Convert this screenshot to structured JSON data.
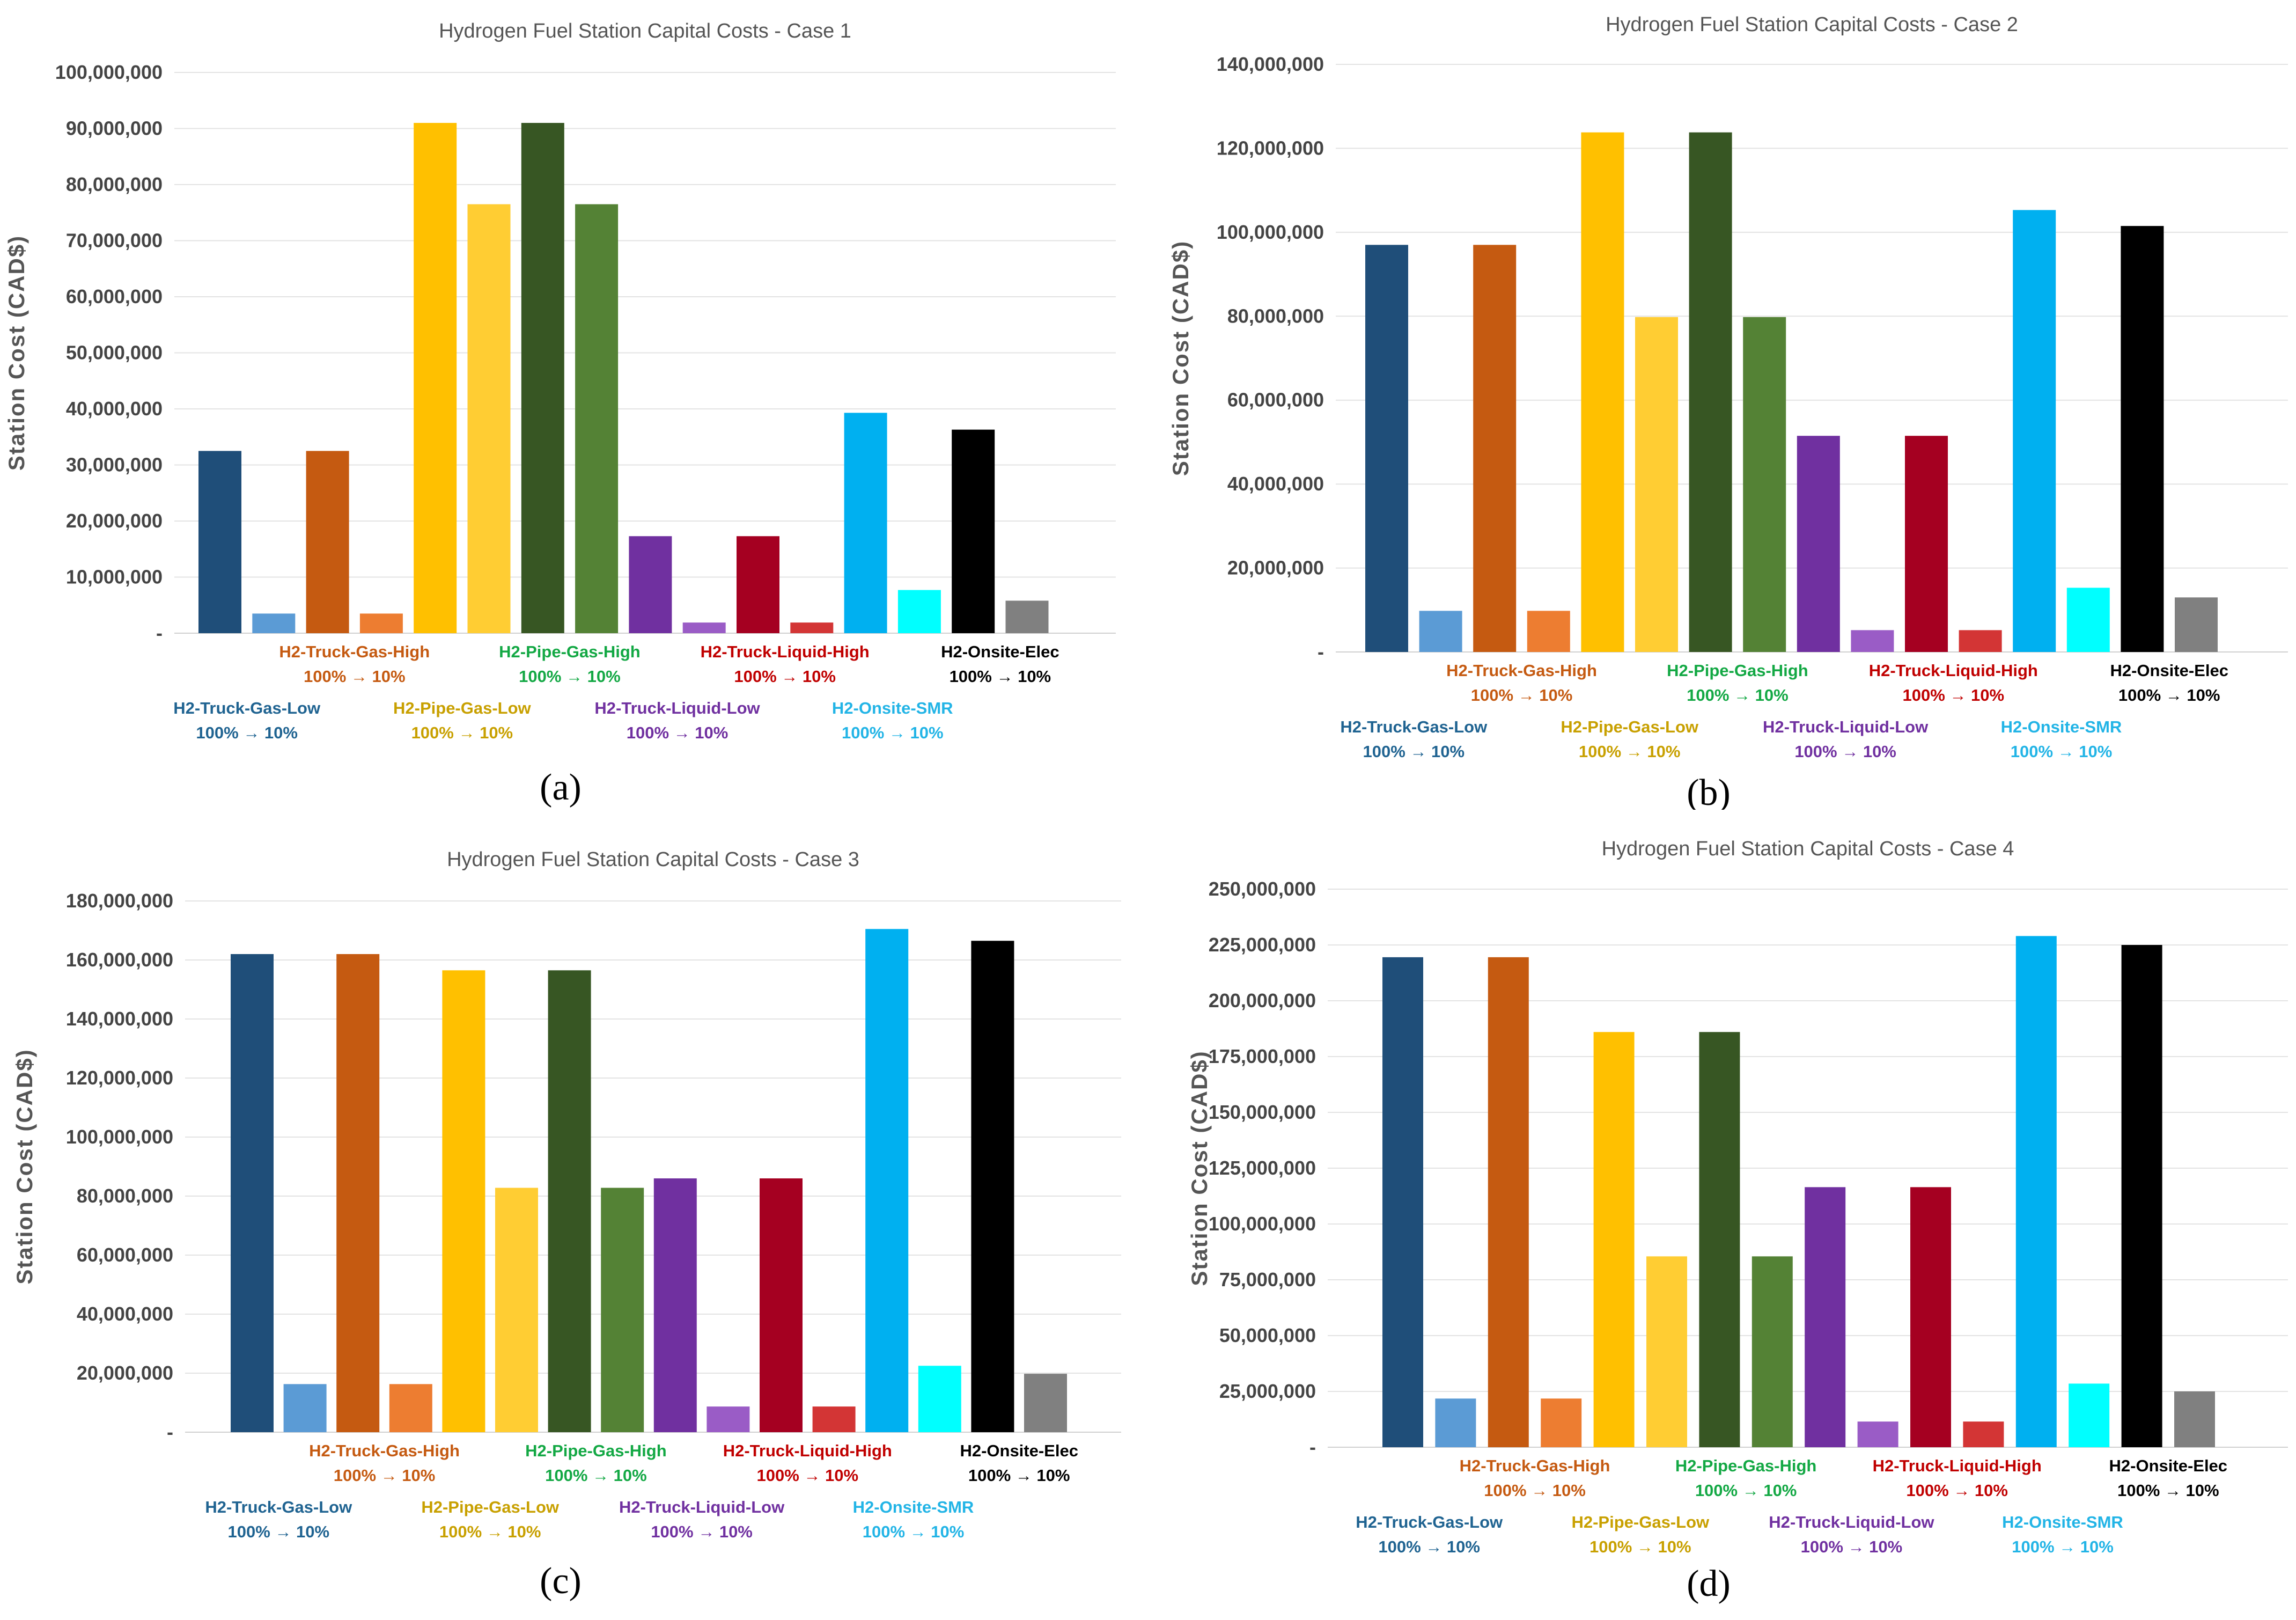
{
  "figure": {
    "panel_letters": [
      "(a)",
      "(b)",
      "(c)",
      "(d)"
    ]
  },
  "colors": {
    "series": [
      "#1f4e79",
      "#5b9bd5",
      "#c55a11",
      "#ed7d31",
      "#ffc000",
      "#ffcd33",
      "#375623",
      "#548235",
      "#7030a0",
      "#9a5cc6",
      "#a50021",
      "#d33535",
      "#00b0f0",
      "#00ffff",
      "#000000",
      "#808080"
    ],
    "group_label_colors": [
      "#1f6391",
      "#c55a11",
      "#c8a000",
      "#13a844",
      "#7030a0",
      "#c00000",
      "#22b4e6",
      "#000000"
    ]
  },
  "chart_data": [
    {
      "type": "bar",
      "title": "Hydrogen Fuel Station Capital Costs - Case 1",
      "ylabel": "Station Cost (CAD$)",
      "xlabel": "",
      "ylim": [
        0,
        100000000
      ],
      "yticks": [
        0,
        10000000,
        20000000,
        30000000,
        40000000,
        50000000,
        60000000,
        70000000,
        80000000,
        90000000,
        100000000
      ],
      "ytick_labels": [
        "-",
        "10,000,000",
        "20,000,000",
        "30,000,000",
        "40,000,000",
        "50,000,000",
        "60,000,000",
        "70,000,000",
        "80,000,000",
        "90,000,000",
        "100,000,000"
      ],
      "groups": [
        {
          "name": "H2-Truck-Gas-Low",
          "pct": "100% → 10%"
        },
        {
          "name": "H2-Truck-Gas-High",
          "pct": "100% → 10%"
        },
        {
          "name": "H2-Pipe-Gas-Low",
          "pct": "100% → 10%"
        },
        {
          "name": "H2-Pipe-Gas-High",
          "pct": "100% → 10%"
        },
        {
          "name": "H2-Truck-Liquid-Low",
          "pct": "100% → 10%"
        },
        {
          "name": "H2-Truck-Liquid-High",
          "pct": "100% → 10%"
        },
        {
          "name": "H2-Onsite-SMR",
          "pct": "100% → 10%"
        },
        {
          "name": "H2-Onsite-Elec",
          "pct": "100% → 10%"
        }
      ],
      "values": [
        32500000,
        3500000,
        32500000,
        3500000,
        91000000,
        76500000,
        91000000,
        76500000,
        17300000,
        1900000,
        17300000,
        1900000,
        39300000,
        7700000,
        36300000,
        5800000
      ]
    },
    {
      "type": "bar",
      "title": "Hydrogen Fuel Station Capital Costs - Case 2",
      "ylabel": "Station Cost (CAD$)",
      "xlabel": "",
      "ylim": [
        0,
        140000000
      ],
      "yticks": [
        0,
        20000000,
        40000000,
        60000000,
        80000000,
        100000000,
        120000000,
        140000000
      ],
      "ytick_labels": [
        "-",
        "20,000,000",
        "40,000,000",
        "60,000,000",
        "80,000,000",
        "100,000,000",
        "120,000,000",
        "140,000,000"
      ],
      "groups": [
        {
          "name": "H2-Truck-Gas-Low",
          "pct": "100% → 10%"
        },
        {
          "name": "H2-Truck-Gas-High",
          "pct": "100% → 10%"
        },
        {
          "name": "H2-Pipe-Gas-Low",
          "pct": "100% → 10%"
        },
        {
          "name": "H2-Pipe-Gas-High",
          "pct": "100% → 10%"
        },
        {
          "name": "H2-Truck-Liquid-Low",
          "pct": "100% → 10%"
        },
        {
          "name": "H2-Truck-Liquid-High",
          "pct": "100% → 10%"
        },
        {
          "name": "H2-Onsite-SMR",
          "pct": "100% → 10%"
        },
        {
          "name": "H2-Onsite-Elec",
          "pct": "100% → 10%"
        }
      ],
      "values": [
        97000000,
        9800000,
        97000000,
        9800000,
        123800000,
        79800000,
        123800000,
        79800000,
        51500000,
        5200000,
        51500000,
        5200000,
        105300000,
        15300000,
        101500000,
        13000000
      ]
    },
    {
      "type": "bar",
      "title": "Hydrogen Fuel Station Capital Costs - Case 3",
      "ylabel": "Station Cost (CAD$)",
      "xlabel": "",
      "ylim": [
        0,
        180000000
      ],
      "yticks": [
        0,
        20000000,
        40000000,
        60000000,
        80000000,
        100000000,
        120000000,
        140000000,
        160000000,
        180000000
      ],
      "ytick_labels": [
        "-",
        "20,000,000",
        "40,000,000",
        "60,000,000",
        "80,000,000",
        "100,000,000",
        "120,000,000",
        "140,000,000",
        "160,000,000",
        "180,000,000"
      ],
      "groups": [
        {
          "name": "H2-Truck-Gas-Low",
          "pct": "100% → 10%"
        },
        {
          "name": "H2-Truck-Gas-High",
          "pct": "100% → 10%"
        },
        {
          "name": "H2-Pipe-Gas-Low",
          "pct": "100% → 10%"
        },
        {
          "name": "H2-Pipe-Gas-High",
          "pct": "100% → 10%"
        },
        {
          "name": "H2-Truck-Liquid-Low",
          "pct": "100% → 10%"
        },
        {
          "name": "H2-Truck-Liquid-High",
          "pct": "100% → 10%"
        },
        {
          "name": "H2-Onsite-SMR",
          "pct": "100% → 10%"
        },
        {
          "name": "H2-Onsite-Elec",
          "pct": "100% → 10%"
        }
      ],
      "values": [
        162000000,
        16300000,
        162000000,
        16300000,
        156500000,
        82800000,
        156500000,
        82800000,
        86000000,
        8700000,
        86000000,
        8700000,
        170500000,
        22500000,
        166500000,
        19800000
      ]
    },
    {
      "type": "bar",
      "title": "Hydrogen Fuel Station Capital Costs - Case 4",
      "ylabel": "Station Cost (CAD$)",
      "xlabel": "",
      "ylim": [
        0,
        250000000
      ],
      "yticks": [
        0,
        25000000,
        50000000,
        75000000,
        100000000,
        125000000,
        150000000,
        175000000,
        200000000,
        225000000,
        250000000
      ],
      "ytick_labels": [
        "-",
        "25,000,000",
        "50,000,000",
        "75,000,000",
        "100,000,000",
        "125,000,000",
        "150,000,000",
        "175,000,000",
        "200,000,000",
        "225,000,000",
        "250,000,000"
      ],
      "groups": [
        {
          "name": "H2-Truck-Gas-Low",
          "pct": "100% → 10%"
        },
        {
          "name": "H2-Truck-Gas-High",
          "pct": "100% → 10%"
        },
        {
          "name": "H2-Pipe-Gas-Low",
          "pct": "100% → 10%"
        },
        {
          "name": "H2-Pipe-Gas-High",
          "pct": "100% → 10%"
        },
        {
          "name": "H2-Truck-Liquid-Low",
          "pct": "100% → 10%"
        },
        {
          "name": "H2-Truck-Liquid-High",
          "pct": "100% → 10%"
        },
        {
          "name": "H2-Onsite-SMR",
          "pct": "100% → 10%"
        },
        {
          "name": "H2-Onsite-Elec",
          "pct": "100% → 10%"
        }
      ],
      "values": [
        219500000,
        21800000,
        219500000,
        21800000,
        186000000,
        85500000,
        186000000,
        85500000,
        116500000,
        11500000,
        116500000,
        11500000,
        229000000,
        28500000,
        225000000,
        25000000
      ]
    }
  ]
}
